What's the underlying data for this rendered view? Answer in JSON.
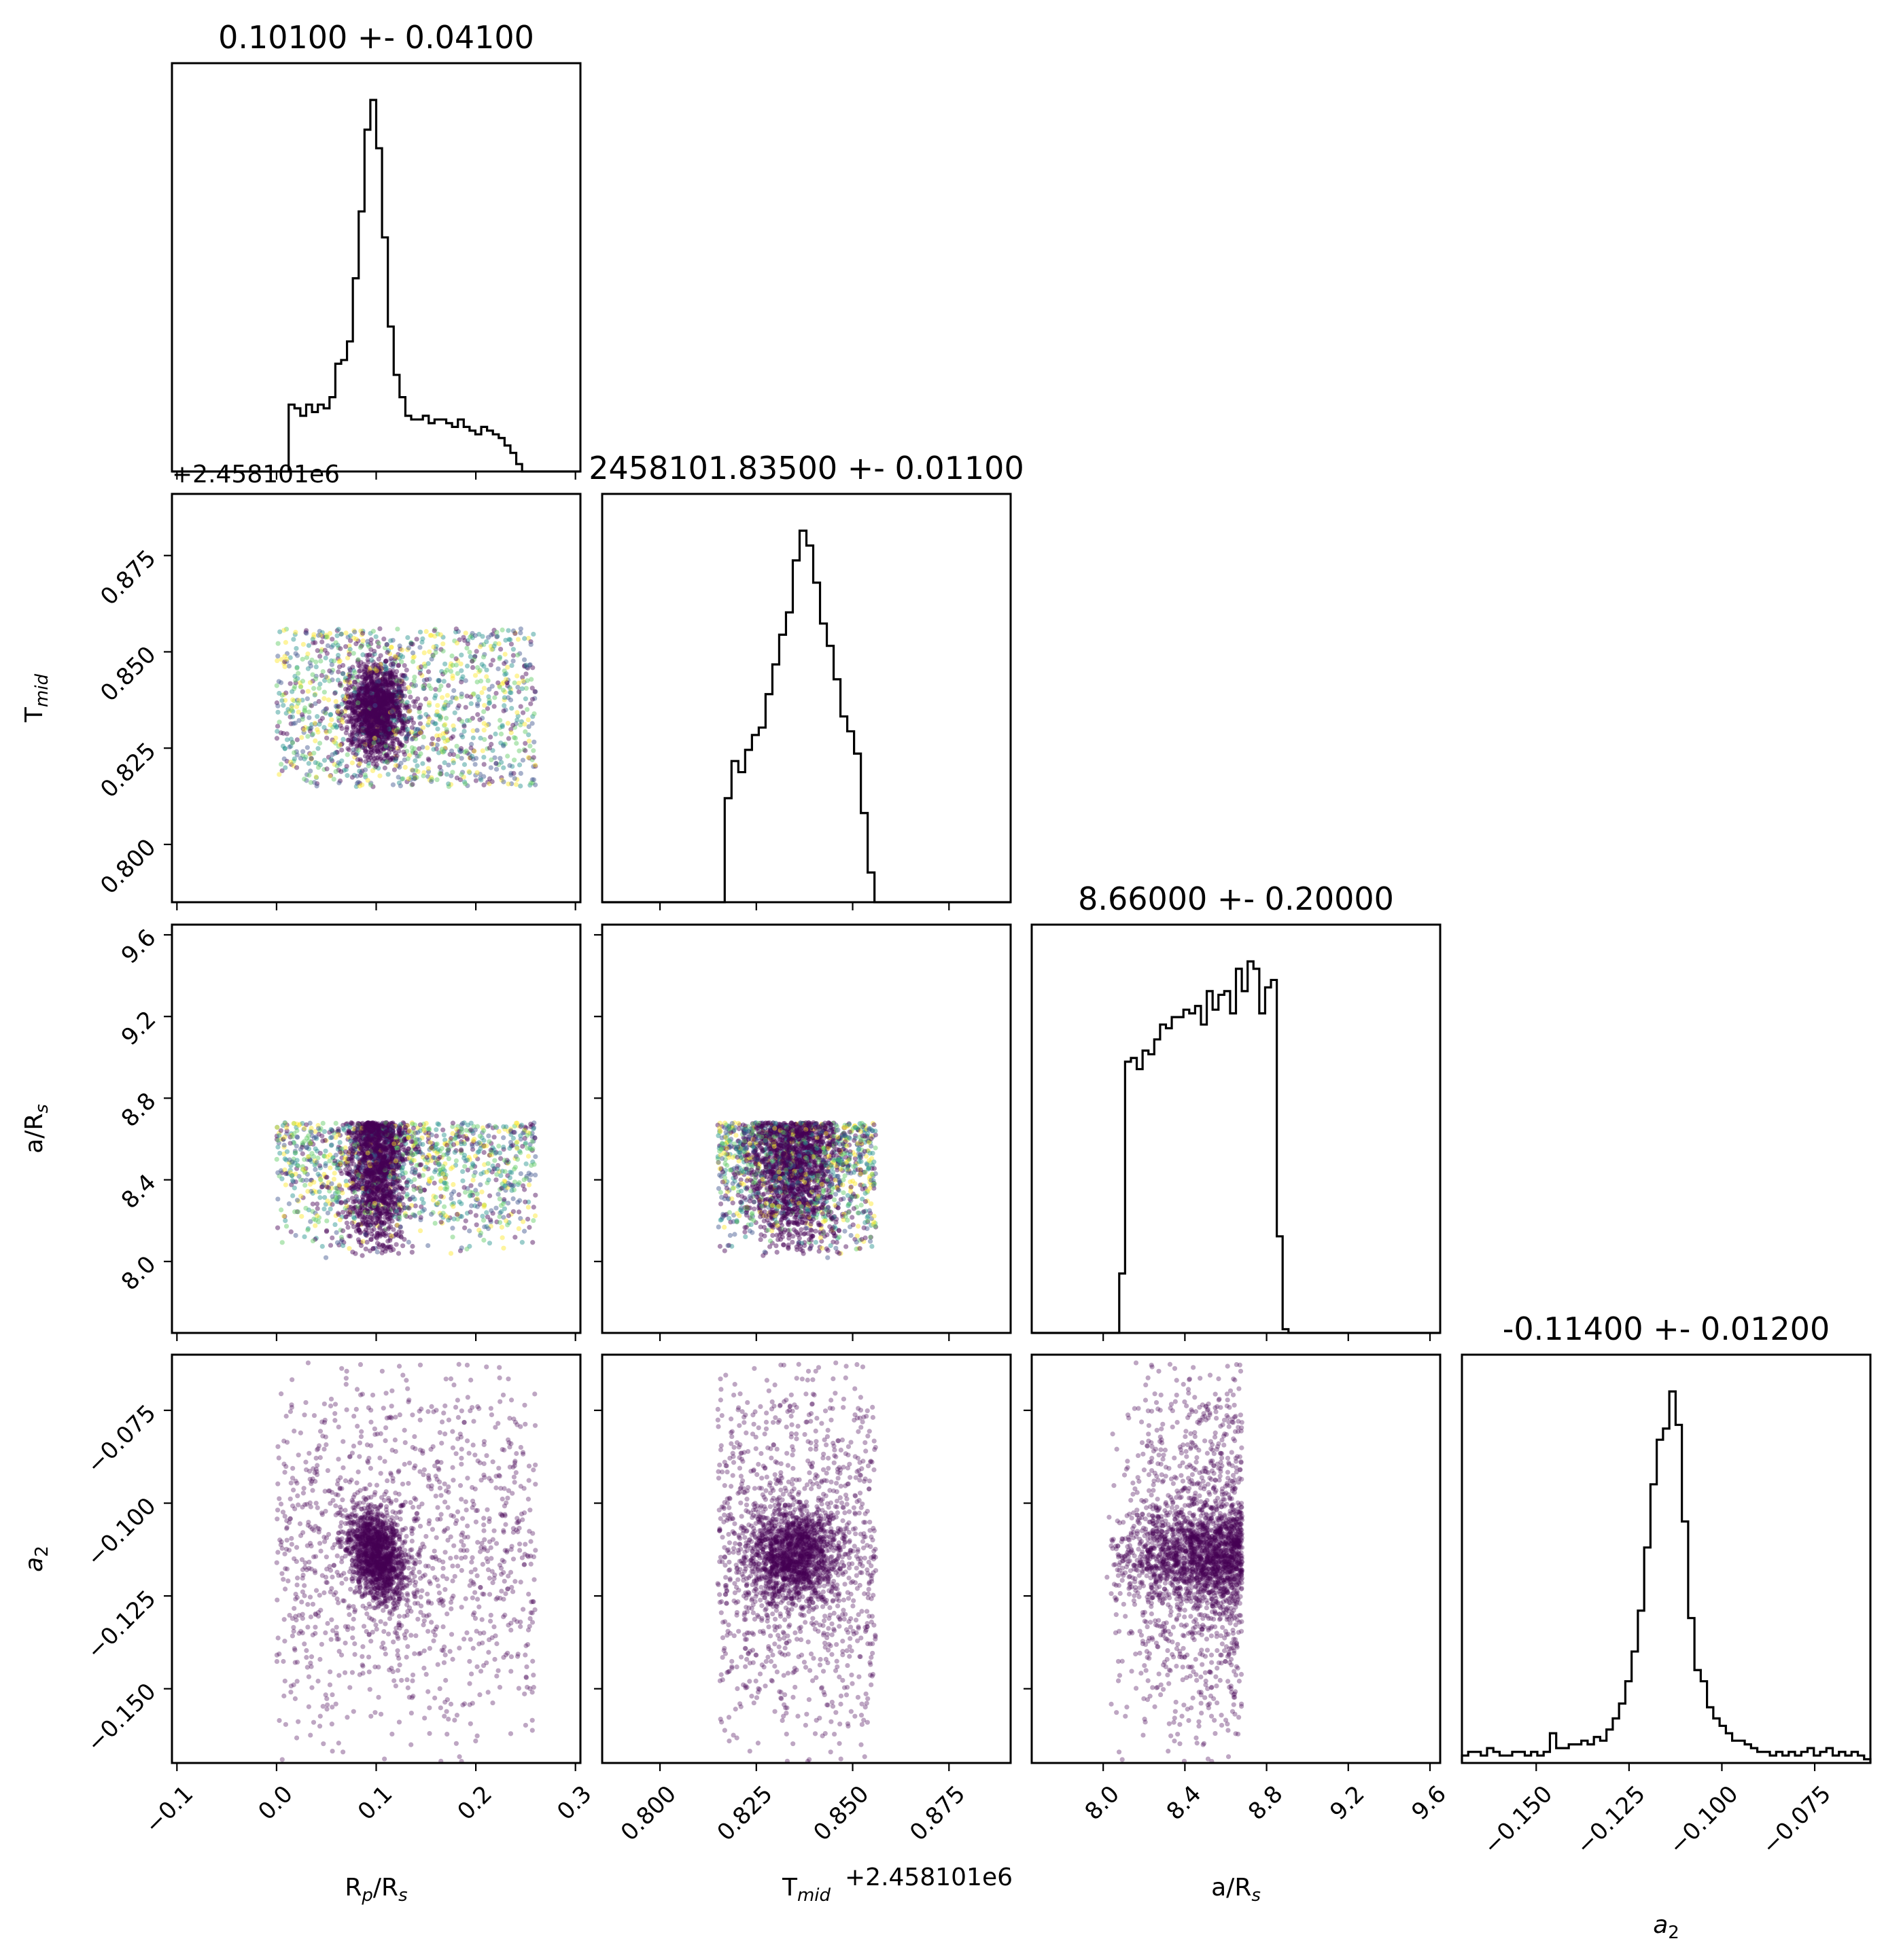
{
  "chart_data": {
    "type": "corner",
    "parameters": [
      {
        "key": "rp_rs",
        "axis_label_html": "R<tspan font-style='italic' font-size='26' dy='8'>p</tspan><tspan dy='-8'>/R</tspan><tspan font-style='italic' font-size='26' dy='8'>s</tspan>",
        "axis_label_text": "Rp/Rs",
        "title": "0.10100 +- 0.04100",
        "range": [
          -0.105,
          0.305
        ],
        "ticks": [
          -0.1,
          0.0,
          0.1,
          0.2,
          0.3
        ],
        "tick_labels": [
          "−0.1",
          "0.0",
          "0.1",
          "0.2",
          "0.3"
        ],
        "median": 0.101,
        "sigma": 0.041,
        "bounds": [
          0.0,
          0.26
        ],
        "histogram": [
          0,
          0,
          0,
          0,
          0,
          0,
          0,
          0,
          0,
          0,
          0,
          0,
          0,
          0,
          0,
          0,
          0,
          0,
          0,
          0,
          0.18,
          0.17,
          0.15,
          0.18,
          0.16,
          0.18,
          0.17,
          0.2,
          0.29,
          0.3,
          0.35,
          0.52,
          0.7,
          0.92,
          1.0,
          0.87,
          0.63,
          0.39,
          0.26,
          0.2,
          0.15,
          0.14,
          0.14,
          0.15,
          0.13,
          0.14,
          0.14,
          0.13,
          0.12,
          0.14,
          0.12,
          0.11,
          0.1,
          0.12,
          0.11,
          0.1,
          0.09,
          0.07,
          0.05,
          0.02,
          0,
          0,
          0,
          0,
          0,
          0,
          0,
          0,
          0,
          0
        ]
      },
      {
        "key": "tmid",
        "axis_label_html": "T<tspan font-style='italic' font-size='26' dy='8'>mid</tspan>",
        "axis_label_text": "Tmid",
        "title": "2458101.83500 +- 0.01100",
        "offset_label": "+2.458101e6",
        "range": [
          0.785,
          0.891
        ],
        "ticks": [
          0.8,
          0.825,
          0.85,
          0.875
        ],
        "tick_labels": [
          "0.800",
          "0.825",
          "0.850",
          "0.875"
        ],
        "median": 0.835,
        "sigma": 0.011,
        "bounds": [
          0.815,
          0.856
        ],
        "histogram": [
          0,
          0,
          0,
          0,
          0,
          0,
          0,
          0,
          0,
          0,
          0,
          0,
          0,
          0,
          0,
          0,
          0,
          0,
          0.28,
          0.38,
          0.35,
          0.41,
          0.45,
          0.47,
          0.56,
          0.64,
          0.72,
          0.78,
          0.92,
          1.0,
          0.96,
          0.86,
          0.75,
          0.69,
          0.6,
          0.5,
          0.46,
          0.4,
          0.24,
          0.08,
          0,
          0,
          0,
          0,
          0,
          0,
          0,
          0,
          0,
          0,
          0,
          0,
          0,
          0,
          0,
          0,
          0,
          0,
          0,
          0
        ]
      },
      {
        "key": "a_rs",
        "axis_label_html": "a/R<tspan font-style='italic' font-size='26' dy='8'>s</tspan>",
        "axis_label_text": "a/Rs",
        "title": "8.66000 +- 0.20000",
        "range": [
          7.65,
          9.65
        ],
        "ticks": [
          8.0,
          8.4,
          8.8,
          9.2,
          9.6
        ],
        "tick_labels": [
          "8.0",
          "8.4",
          "8.8",
          "9.2",
          "9.6"
        ],
        "median": 8.66,
        "sigma": 0.2,
        "bounds": [
          8.0,
          8.68
        ],
        "histogram": [
          0,
          0,
          0,
          0,
          0,
          0,
          0,
          0,
          0,
          0,
          0,
          0,
          0,
          0,
          0,
          0.16,
          0.73,
          0.74,
          0.71,
          0.76,
          0.75,
          0.79,
          0.83,
          0.82,
          0.85,
          0.85,
          0.87,
          0.86,
          0.88,
          0.83,
          0.92,
          0.87,
          0.91,
          0.92,
          0.86,
          0.98,
          0.92,
          1.0,
          0.98,
          0.86,
          0.93,
          0.95,
          0.26,
          0.01,
          0,
          0,
          0,
          0,
          0,
          0,
          0,
          0,
          0,
          0,
          0,
          0,
          0,
          0,
          0,
          0,
          0,
          0,
          0,
          0,
          0,
          0,
          0,
          0,
          0,
          0
        ]
      },
      {
        "key": "a2",
        "axis_label_html": "<tspan font-style='italic'>a</tspan><tspan font-size='26' dy='8'>2</tspan>",
        "axis_label_text": "a2",
        "title": "-0.11400 +- 0.01200",
        "range": [
          -0.17,
          -0.06
        ],
        "ticks": [
          -0.15,
          -0.125,
          -0.1,
          -0.075
        ],
        "tick_labels": [
          "−0.150",
          "−0.125",
          "−0.100",
          "−0.075"
        ],
        "median": -0.114,
        "sigma": 0.012,
        "histogram": [
          0.02,
          0.03,
          0.03,
          0.02,
          0.04,
          0.03,
          0.02,
          0.02,
          0.03,
          0.03,
          0.02,
          0.03,
          0.02,
          0.03,
          0.08,
          0.04,
          0.04,
          0.05,
          0.05,
          0.06,
          0.05,
          0.07,
          0.06,
          0.09,
          0.12,
          0.16,
          0.22,
          0.3,
          0.41,
          0.58,
          0.75,
          0.87,
          0.9,
          1.0,
          0.91,
          0.65,
          0.39,
          0.25,
          0.22,
          0.15,
          0.12,
          0.1,
          0.08,
          0.06,
          0.06,
          0.05,
          0.04,
          0.03,
          0.03,
          0.02,
          0.03,
          0.02,
          0.03,
          0.02,
          0.03,
          0.04,
          0.02,
          0.03,
          0.04,
          0.02,
          0.03,
          0.02,
          0.03,
          0.02,
          0.01
        ]
      }
    ],
    "offset_labels": {
      "row_tmid": "+2.458101e6",
      "col_tmid": "+2.458101e6"
    },
    "scatter_colormap": "viridis",
    "scatter_colors": [
      "#440154",
      "#3b528b",
      "#21918c",
      "#5ec962",
      "#fde725"
    ],
    "hist_color": "#000000",
    "grid": false,
    "legend": "none"
  }
}
